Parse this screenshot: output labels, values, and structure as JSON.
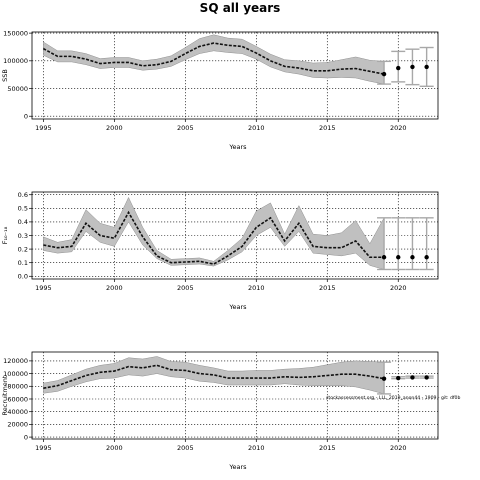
{
  "figure": {
    "title": "SQ all years"
  },
  "chart_data": [
    {
      "type": "line",
      "xlabel": "Years",
      "ylabel": "SSB",
      "xlim": [
        1994.2,
        2022.8
      ],
      "ylim": [
        -5000,
        152000
      ],
      "xticks": [
        1995,
        2000,
        2005,
        2010,
        2015,
        2020
      ],
      "xtick_labels": [
        "1995",
        "2000",
        "2005",
        "2010",
        "2015",
        "2020"
      ],
      "yticks": [
        0,
        50000,
        100000,
        150000
      ],
      "ytick_labels": [
        "0",
        "50000",
        "100000",
        "150000"
      ],
      "grid": true,
      "x": [
        1995,
        1996,
        1997,
        1998,
        1999,
        2000,
        2001,
        2002,
        2003,
        2004,
        2005,
        2006,
        2007,
        2008,
        2009,
        2010,
        2011,
        2012,
        2013,
        2014,
        2015,
        2016,
        2017,
        2018,
        2019
      ],
      "median": [
        122000,
        108000,
        108000,
        103000,
        95000,
        97000,
        97000,
        91000,
        93000,
        99000,
        113000,
        126000,
        132000,
        128000,
        126000,
        114000,
        100000,
        90000,
        87000,
        82000,
        82000,
        85000,
        86000,
        81000,
        76000
      ],
      "upper": [
        134000,
        118000,
        118000,
        113000,
        104000,
        106000,
        106000,
        100000,
        103000,
        109000,
        124000,
        140000,
        147000,
        141000,
        139000,
        126000,
        112000,
        102000,
        100000,
        96000,
        97000,
        102000,
        107000,
        101000,
        99000
      ],
      "lower": [
        110000,
        98000,
        98000,
        93000,
        86000,
        88000,
        88000,
        83000,
        85000,
        90000,
        102000,
        113000,
        118000,
        115000,
        113000,
        103000,
        89000,
        80000,
        76000,
        70000,
        69000,
        70000,
        69000,
        63000,
        58000
      ],
      "forecast": {
        "x": [
          2019,
          2020,
          2021,
          2022
        ],
        "median": [
          76000,
          87000,
          89000,
          89000
        ],
        "lower": [
          58000,
          62000,
          57000,
          54000
        ],
        "upper": [
          99000,
          117000,
          121000,
          124000
        ]
      }
    },
    {
      "type": "line",
      "xlabel": "Years",
      "ylabel": "F₁₀₋₁₈",
      "xlim": [
        1994.2,
        2022.8
      ],
      "ylim": [
        -0.02,
        0.62
      ],
      "xticks": [
        1995,
        2000,
        2005,
        2010,
        2015,
        2020
      ],
      "xtick_labels": [
        "1995",
        "2000",
        "2005",
        "2010",
        "2015",
        "2020"
      ],
      "yticks": [
        0.0,
        0.1,
        0.2,
        0.3,
        0.4,
        0.5,
        0.6
      ],
      "ytick_labels": [
        "0.0",
        "0.1",
        "0.2",
        "0.3",
        "0.4",
        "0.5",
        "0.6"
      ],
      "grid": true,
      "x": [
        1995,
        1996,
        1997,
        1998,
        1999,
        2000,
        2001,
        2002,
        2003,
        2004,
        2005,
        2006,
        2007,
        2008,
        2009,
        2010,
        2011,
        2012,
        2013,
        2014,
        2015,
        2016,
        2017,
        2018,
        2019
      ],
      "median": [
        0.23,
        0.21,
        0.22,
        0.39,
        0.3,
        0.28,
        0.47,
        0.29,
        0.15,
        0.1,
        0.105,
        0.11,
        0.09,
        0.15,
        0.22,
        0.36,
        0.43,
        0.26,
        0.39,
        0.22,
        0.21,
        0.21,
        0.26,
        0.14,
        0.14
      ],
      "upper": [
        0.29,
        0.25,
        0.27,
        0.49,
        0.39,
        0.36,
        0.58,
        0.36,
        0.19,
        0.125,
        0.13,
        0.135,
        0.11,
        0.19,
        0.28,
        0.48,
        0.54,
        0.31,
        0.52,
        0.31,
        0.3,
        0.32,
        0.41,
        0.24,
        0.43
      ],
      "lower": [
        0.19,
        0.17,
        0.18,
        0.33,
        0.25,
        0.22,
        0.4,
        0.23,
        0.13,
        0.08,
        0.085,
        0.09,
        0.075,
        0.12,
        0.18,
        0.3,
        0.36,
        0.22,
        0.33,
        0.17,
        0.16,
        0.15,
        0.17,
        0.08,
        0.05
      ],
      "forecast": {
        "x": [
          2019,
          2020,
          2021,
          2022
        ],
        "median": [
          0.14,
          0.14,
          0.14,
          0.14
        ],
        "lower": [
          0.05,
          0.05,
          0.05,
          0.05
        ],
        "upper": [
          0.43,
          0.43,
          0.43,
          0.43
        ]
      }
    },
    {
      "type": "line",
      "xlabel": "Years",
      "ylabel": "Recruitment",
      "xlim": [
        1994.2,
        2022.8
      ],
      "ylim": [
        -3000,
        134000
      ],
      "xticks": [
        1995,
        2000,
        2005,
        2010,
        2015,
        2020
      ],
      "xtick_labels": [
        "1995",
        "2000",
        "2005",
        "2010",
        "2015",
        "2020"
      ],
      "yticks": [
        0,
        20000,
        40000,
        60000,
        80000,
        100000,
        120000
      ],
      "ytick_labels": [
        "0",
        "20000",
        "40000",
        "60000",
        "80000",
        "100000",
        "120000"
      ],
      "grid": true,
      "x": [
        1995,
        1996,
        1997,
        1998,
        1999,
        2000,
        2001,
        2002,
        2003,
        2004,
        2005,
        2006,
        2007,
        2008,
        2009,
        2010,
        2011,
        2012,
        2013,
        2014,
        2015,
        2016,
        2017,
        2018,
        2019
      ],
      "median": [
        77000,
        81000,
        89000,
        97000,
        102000,
        104000,
        111000,
        109000,
        113000,
        106000,
        105000,
        100000,
        98000,
        93000,
        93000,
        93000,
        93000,
        95000,
        94000,
        95000,
        97000,
        99000,
        99000,
        96000,
        92000
      ],
      "upper": [
        85000,
        89000,
        98000,
        107000,
        113000,
        116000,
        125000,
        123000,
        127000,
        119000,
        118000,
        113000,
        109000,
        104000,
        104000,
        105000,
        105000,
        107000,
        108000,
        110000,
        114000,
        118000,
        120000,
        119000,
        118000
      ],
      "lower": [
        69000,
        72000,
        80000,
        87000,
        92000,
        93000,
        98000,
        96000,
        100000,
        95000,
        93000,
        88000,
        86000,
        82000,
        82000,
        82000,
        82000,
        84000,
        82000,
        81000,
        81000,
        81000,
        79000,
        74000,
        68000
      ],
      "forecast": {
        "x": [
          2019,
          2020,
          2021,
          2022
        ],
        "median": [
          92000,
          93000,
          94000,
          94000
        ],
        "lower": [
          68000,
          92000,
          93000,
          93000
        ],
        "upper": [
          118000,
          95000,
          96000,
          96000
        ]
      },
      "annotation": "stockassessment.org - LLL_2019_anon44 - 1909 - git: df0b"
    }
  ],
  "colors": {
    "band": "#c0c0c0",
    "band_edge": "#909090",
    "median_line": "#111111",
    "forecast_bar": "#a8a8a8",
    "point": "#000000",
    "grid": "#000000"
  }
}
